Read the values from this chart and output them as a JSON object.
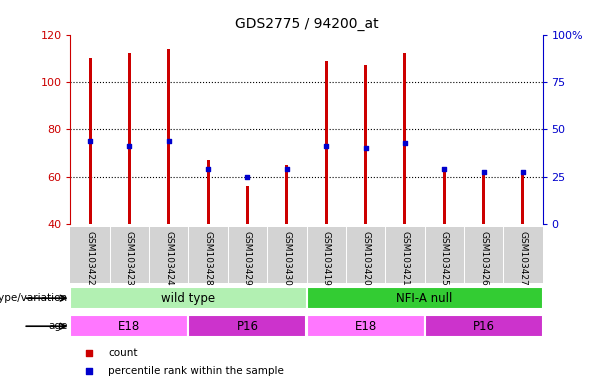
{
  "title": "GDS2775 / 94200_at",
  "samples": [
    "GSM103422",
    "GSM103423",
    "GSM103424",
    "GSM103428",
    "GSM103429",
    "GSM103430",
    "GSM103419",
    "GSM103420",
    "GSM103421",
    "GSM103425",
    "GSM103426",
    "GSM103427"
  ],
  "count_values": [
    110,
    112,
    114,
    67,
    56,
    65,
    109,
    107,
    112,
    62,
    61,
    61
  ],
  "percentile_values": [
    75,
    73,
    75,
    63,
    60,
    63,
    73,
    72,
    74,
    63,
    62,
    62
  ],
  "ylim_left": [
    40,
    120
  ],
  "ylim_right": [
    0,
    100
  ],
  "yticks_left": [
    40,
    60,
    80,
    100,
    120
  ],
  "yticks_right": [
    0,
    25,
    50,
    75,
    100
  ],
  "ytick_labels_right": [
    "0",
    "25",
    "50",
    "75",
    "100%"
  ],
  "bar_color": "#cc0000",
  "percentile_color": "#0000cc",
  "bar_width": 0.08,
  "genotype_groups": [
    {
      "label": "wild type",
      "start": 0,
      "end": 6,
      "color": "#b2f0b2"
    },
    {
      "label": "NFI-A null",
      "start": 6,
      "end": 12,
      "color": "#33cc33"
    }
  ],
  "age_groups": [
    {
      "label": "E18",
      "start": 0,
      "end": 3,
      "color": "#ff77ff"
    },
    {
      "label": "P16",
      "start": 3,
      "end": 6,
      "color": "#cc33cc"
    },
    {
      "label": "E18",
      "start": 6,
      "end": 9,
      "color": "#ff77ff"
    },
    {
      "label": "P16",
      "start": 9,
      "end": 12,
      "color": "#cc33cc"
    }
  ],
  "legend_items": [
    {
      "label": "count",
      "color": "#cc0000"
    },
    {
      "label": "percentile rank within the sample",
      "color": "#0000cc"
    }
  ],
  "left_axis_color": "#cc0000",
  "right_axis_color": "#0000cc",
  "tick_label_area_color": "#d3d3d3",
  "genotype_label": "genotype/variation",
  "age_label": "age",
  "grid_yticks": [
    60,
    80,
    100
  ]
}
